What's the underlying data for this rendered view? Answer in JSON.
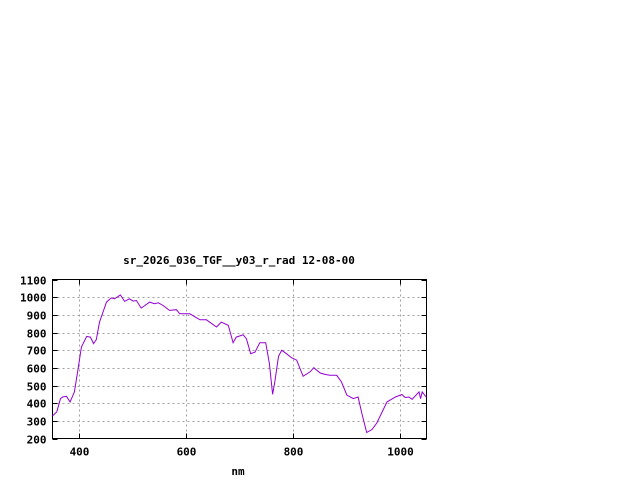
{
  "chart_data": {
    "type": "line",
    "title": "sr_2026_036_TGF__y03_r_rad 12-08-00",
    "xlabel": "nm",
    "ylabel": "",
    "xlim": [
      350,
      1050
    ],
    "ylim": [
      200,
      1100
    ],
    "xticks": [
      400,
      600,
      800,
      1000
    ],
    "yticks": [
      200,
      300,
      400,
      500,
      600,
      700,
      800,
      900,
      1000,
      1100
    ],
    "grid": true,
    "line_color": "#9400d3",
    "series": [
      {
        "x": [
          350,
          358,
          365,
          369,
          376,
          383,
          391,
          397,
          404,
          414,
          421,
          427,
          432,
          438,
          451,
          460,
          466,
          477,
          485,
          494,
          501,
          507,
          516,
          532,
          541,
          548,
          557,
          569,
          582,
          588,
          607,
          626,
          638,
          657,
          666,
          679,
          688,
          694,
          707,
          713,
          721,
          729,
          738,
          749,
          756,
          762,
          766,
          773,
          779,
          788,
          797,
          807,
          819,
          832,
          839,
          851,
          860,
          869,
          882,
          891,
          901,
          913,
          922,
          929,
          938,
          948,
          957,
          976,
          992,
          1004,
          1010,
          1017,
          1023,
          1036,
          1039,
          1042,
          1050
        ],
        "y": [
          328,
          351,
          426,
          435,
          439,
          407,
          464,
          577,
          718,
          778,
          774,
          737,
          760,
          859,
          972,
          996,
          991,
          1013,
          976,
          991,
          978,
          981,
          938,
          972,
          963,
          968,
          953,
          925,
          929,
          906,
          906,
          872,
          872,
          831,
          859,
          840,
          742,
          774,
          787,
          765,
          680,
          689,
          742,
          742,
          624,
          450,
          520,
          665,
          699,
          680,
          658,
          643,
          552,
          577,
          601,
          571,
          563,
          558,
          558,
          520,
          445,
          426,
          435,
          341,
          234,
          251,
          288,
          407,
          435,
          449,
          432,
          435,
          422,
          464,
          426,
          464,
          432
        ]
      }
    ]
  }
}
